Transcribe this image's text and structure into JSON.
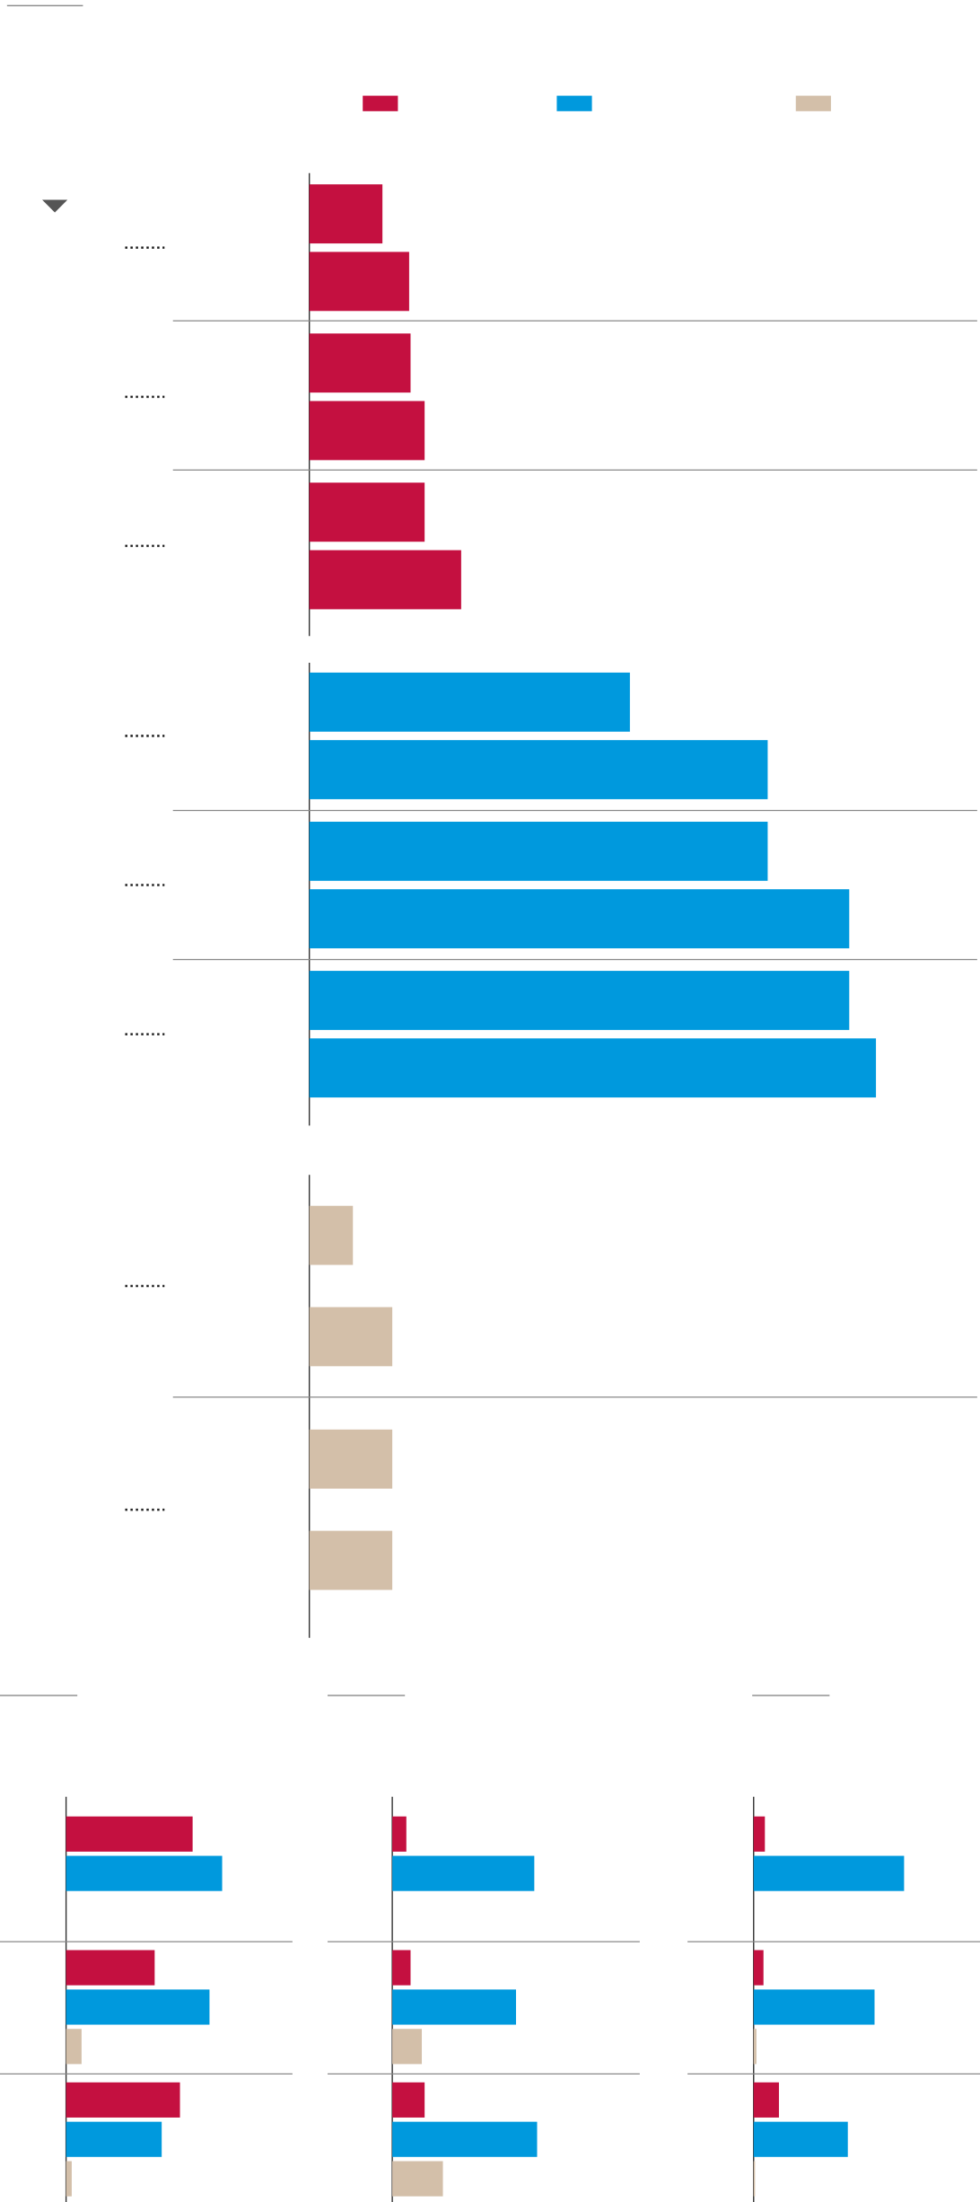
{
  "chart_data": [
    {
      "type": "grouped-bar",
      "xlim": [
        0,
        475
      ],
      "groups": [
        {
          "color": "#c41040",
          "values": [
            [
              52,
              71
            ],
            [
              72,
              82
            ],
            [
              82,
              108
            ]
          ]
        },
        {
          "color": "#0099dd",
          "values": [
            [
              228,
              326
            ],
            [
              326,
              384
            ],
            [
              384,
              403
            ]
          ]
        },
        {
          "color": "#d3bfa9",
          "values": [
            [
              31,
              59
            ],
            [
              59,
              59
            ]
          ]
        }
      ]
    },
    {
      "type": "bar",
      "xlim": [
        0,
        161
      ],
      "series": [
        {
          "color": "#c41040",
          "values": [
            90,
            63,
            81
          ]
        },
        {
          "color": "#0099dd",
          "values": [
            111,
            102,
            68
          ]
        },
        {
          "color": "#d3bfa9",
          "values": [
            null,
            11,
            4
          ]
        }
      ]
    },
    {
      "type": "bar",
      "xlim": [
        0,
        176
      ],
      "series": [
        {
          "color": "#c41040",
          "values": [
            10,
            13,
            23
          ]
        },
        {
          "color": "#0099dd",
          "values": [
            101,
            88,
            103
          ]
        },
        {
          "color": "#d3bfa9",
          "values": [
            null,
            21,
            36
          ]
        }
      ]
    },
    {
      "type": "bar",
      "xlim": [
        0,
        161
      ],
      "series": [
        {
          "color": "#c41040",
          "values": [
            8,
            7,
            18
          ]
        },
        {
          "color": "#0099dd",
          "values": [
            107,
            86,
            67
          ]
        },
        {
          "color": "#d3bfa9",
          "values": [
            null,
            2,
            1
          ]
        }
      ]
    }
  ]
}
